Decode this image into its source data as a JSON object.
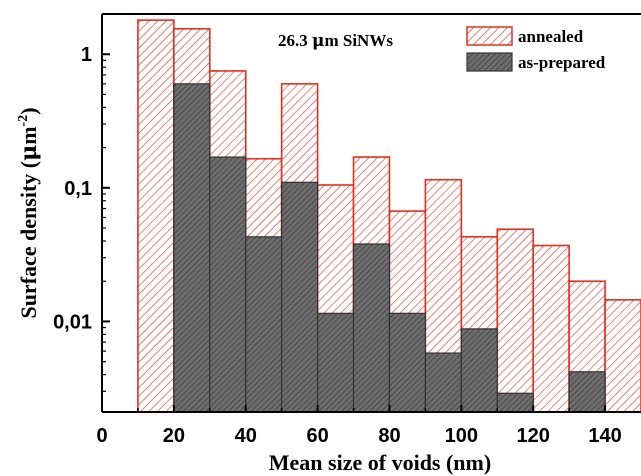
{
  "chart_data": {
    "type": "bar",
    "title": "",
    "annotation_parts": [
      "26.3 ",
      "μ",
      "m SiNWs"
    ],
    "xlabel": "Mean size of voids (nm)",
    "ylabel_parts": [
      "Surface density (",
      "μ",
      "m",
      "-2",
      ")"
    ],
    "x_ticks": [
      0,
      20,
      40,
      60,
      80,
      100,
      120,
      140
    ],
    "x_tick_labels": [
      "0",
      "20",
      "40",
      "60",
      "80",
      "100",
      "120",
      "140"
    ],
    "y_ticks": [
      0.01,
      0.1,
      1
    ],
    "y_tick_labels": [
      "0,01",
      "0,1",
      "1"
    ],
    "xlim": [
      0,
      150
    ],
    "ylim": [
      0.0021,
      2.0
    ],
    "y_scale": "log",
    "bin_width": 10,
    "grid": false,
    "legend_position": "top-right",
    "series": [
      {
        "name": "annealed",
        "color": "#e0301e",
        "pattern": "hatched",
        "bins": [
          {
            "start": 10,
            "end": 20,
            "value": 1.8
          },
          {
            "start": 20,
            "end": 30,
            "value": 1.55
          },
          {
            "start": 30,
            "end": 40,
            "value": 0.75
          },
          {
            "start": 40,
            "end": 50,
            "value": 0.165
          },
          {
            "start": 50,
            "end": 60,
            "value": 0.6
          },
          {
            "start": 60,
            "end": 70,
            "value": 0.105
          },
          {
            "start": 70,
            "end": 80,
            "value": 0.17
          },
          {
            "start": 80,
            "end": 90,
            "value": 0.067
          },
          {
            "start": 90,
            "end": 100,
            "value": 0.115
          },
          {
            "start": 100,
            "end": 110,
            "value": 0.043
          },
          {
            "start": 110,
            "end": 120,
            "value": 0.049
          },
          {
            "start": 120,
            "end": 130,
            "value": 0.037
          },
          {
            "start": 130,
            "end": 140,
            "value": 0.02
          },
          {
            "start": 140,
            "end": 150,
            "value": 0.0145
          }
        ]
      },
      {
        "name": "as-prepared",
        "color": "#555555",
        "pattern": "hatched-dark",
        "bins": [
          {
            "start": 20,
            "end": 30,
            "value": 0.6
          },
          {
            "start": 30,
            "end": 40,
            "value": 0.17
          },
          {
            "start": 40,
            "end": 50,
            "value": 0.043
          },
          {
            "start": 50,
            "end": 60,
            "value": 0.11
          },
          {
            "start": 60,
            "end": 70,
            "value": 0.0115
          },
          {
            "start": 70,
            "end": 80,
            "value": 0.038
          },
          {
            "start": 80,
            "end": 90,
            "value": 0.0115
          },
          {
            "start": 90,
            "end": 100,
            "value": 0.0058
          },
          {
            "start": 100,
            "end": 110,
            "value": 0.0088
          },
          {
            "start": 110,
            "end": 120,
            "value": 0.0029
          },
          {
            "start": 130,
            "end": 140,
            "value": 0.0042
          }
        ]
      }
    ]
  }
}
